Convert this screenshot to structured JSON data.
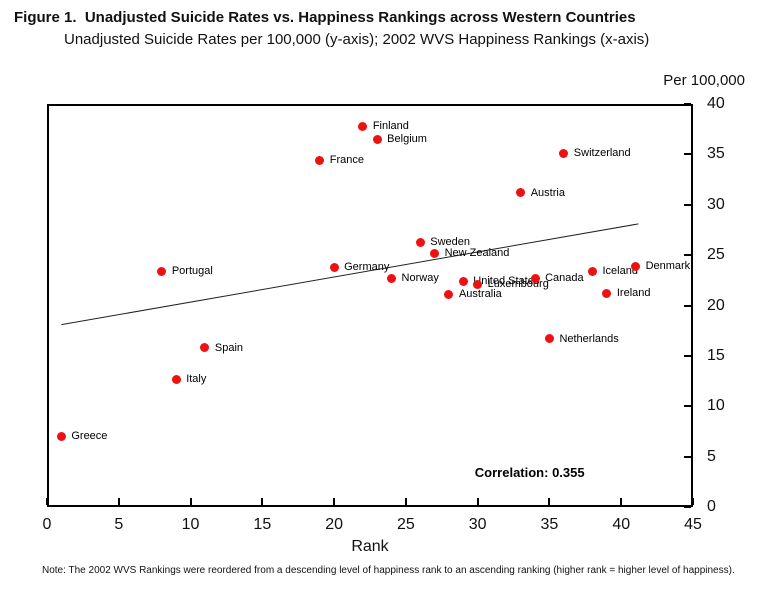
{
  "figure": {
    "title": "Figure 1.  Unadjusted Suicide Rates vs. Happiness Rankings across Western Countries",
    "subtitle": "Unadjusted Suicide Rates per 100,000 (y-axis); 2002 WVS Happiness Rankings (x-axis)",
    "unit_label": "Per 100,000",
    "note": "Note: The 2002 WVS Rankings were reordered from a descending level of happiness rank to an ascending ranking (higher rank = higher level of happiness)."
  },
  "chart_data": {
    "type": "scatter",
    "title": "Unadjusted Suicide Rates vs. Happiness Rankings across Western Countries",
    "xlabel": "Rank",
    "ylabel": "Per 100,000",
    "xlim": [
      0,
      45
    ],
    "ylim": [
      0,
      40
    ],
    "x_ticks": [
      0,
      5,
      10,
      15,
      20,
      25,
      30,
      35,
      40,
      45
    ],
    "y_ticks": [
      0,
      5,
      10,
      15,
      20,
      25,
      30,
      35,
      40
    ],
    "grid": false,
    "legend": "none",
    "marker_color": "#ee1111",
    "points": [
      {
        "label": "Greece",
        "x": 1,
        "y": 7.0
      },
      {
        "label": "Portugal",
        "x": 8,
        "y": 23.4
      },
      {
        "label": "Italy",
        "x": 9,
        "y": 12.7
      },
      {
        "label": "Spain",
        "x": 11,
        "y": 15.8
      },
      {
        "label": "France",
        "x": 19,
        "y": 34.4
      },
      {
        "label": "Germany",
        "x": 20,
        "y": 23.8
      },
      {
        "label": "Finland",
        "x": 22,
        "y": 37.8
      },
      {
        "label": "Belgium",
        "x": 23,
        "y": 36.5
      },
      {
        "label": "Norway",
        "x": 24,
        "y": 22.7
      },
      {
        "label": "Sweden",
        "x": 26,
        "y": 26.3
      },
      {
        "label": "New Zealand",
        "x": 27,
        "y": 25.2
      },
      {
        "label": "Australia",
        "x": 28,
        "y": 21.1
      },
      {
        "label": "United States",
        "x": 29,
        "y": 22.4
      },
      {
        "label": "Luxembourg",
        "x": 30,
        "y": 22.1
      },
      {
        "label": "Austria",
        "x": 33,
        "y": 31.2
      },
      {
        "label": "Canada",
        "x": 34,
        "y": 22.7
      },
      {
        "label": "Netherlands",
        "x": 35,
        "y": 16.7
      },
      {
        "label": "Switzerland",
        "x": 36,
        "y": 35.1
      },
      {
        "label": "Iceland",
        "x": 38,
        "y": 23.4
      },
      {
        "label": "Ireland",
        "x": 39,
        "y": 21.2
      },
      {
        "label": "Denmark",
        "x": 41,
        "y": 23.9
      }
    ],
    "trendline": {
      "x1": 1.0,
      "y1": 18.1,
      "x2": 41.2,
      "y2": 28.1
    },
    "annotation": "Correlation: 0.355",
    "annotation_position": {
      "x": 29.8,
      "y": 3.4
    }
  }
}
